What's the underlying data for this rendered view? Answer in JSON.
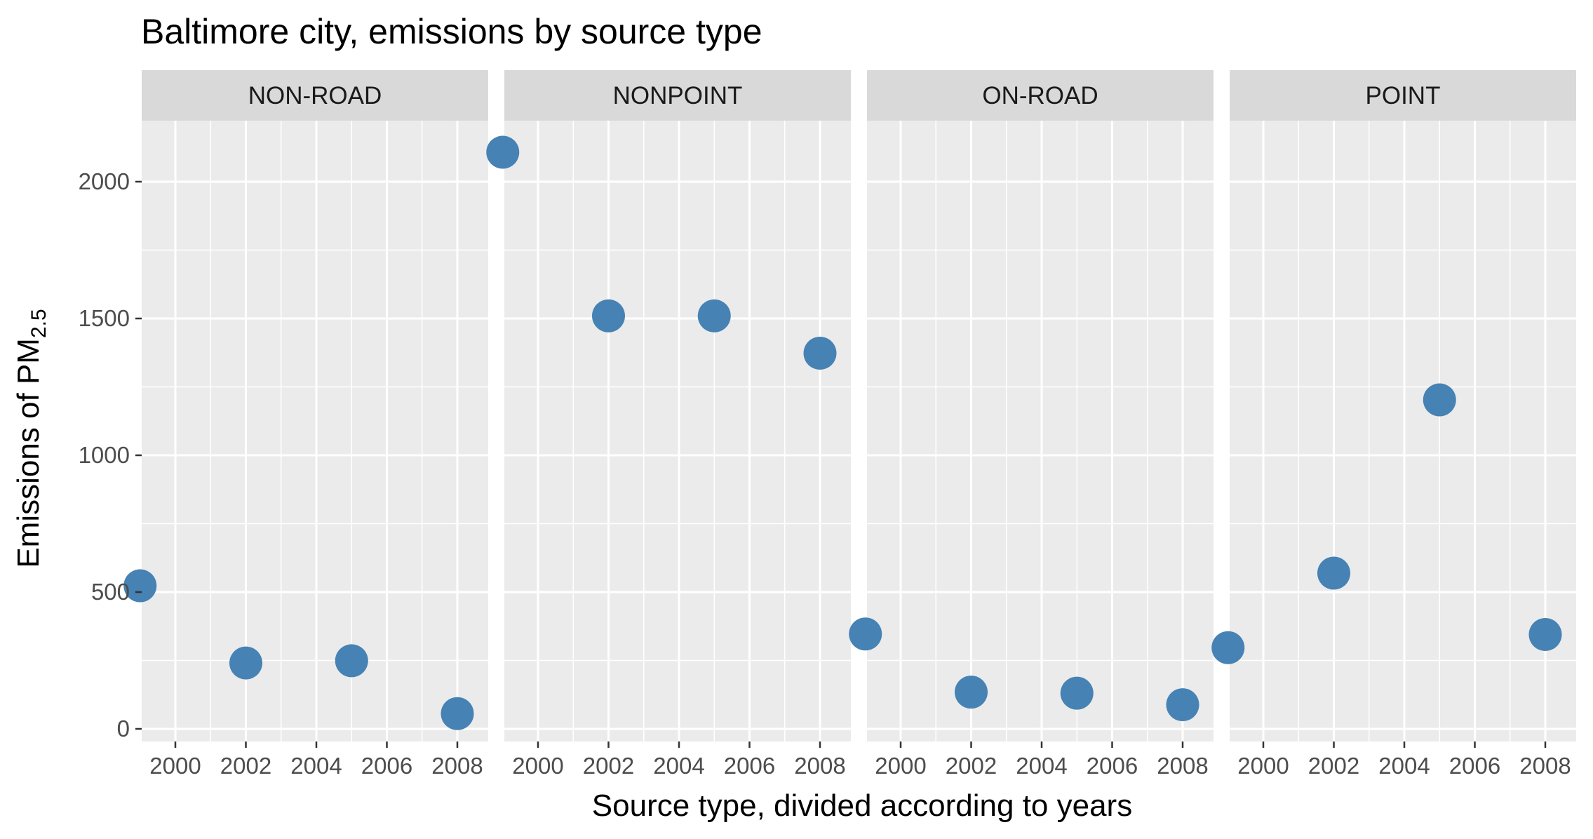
{
  "chart_data": {
    "type": "scatter",
    "title": "Baltimore city, emissions by source type",
    "xlabel": "Source type, divided according to years",
    "ylabel": "Emissions of PM",
    "ylabel_subscript": "2.5",
    "xlim": [
      1999.5,
      2008.5
    ],
    "ylim": [
      0,
      2100
    ],
    "x_ticks": [
      2000,
      2002,
      2004,
      2006,
      2008
    ],
    "x_tick_labels": [
      "2000",
      "2002",
      "2004",
      "2006",
      "2008"
    ],
    "y_ticks": [
      0,
      500,
      1000,
      1500,
      2000
    ],
    "y_tick_labels": [
      "0",
      "500",
      "1000",
      "1500",
      "2000"
    ],
    "grid": true,
    "point_color": "#4682B4",
    "panel_color": "#EBEBEB",
    "strip_color": "#D9D9D9",
    "facets": [
      {
        "name": "NON-ROAD",
        "x": [
          1999,
          2002,
          2005,
          2008
        ],
        "y": [
          522.94,
          240.85,
          248.93,
          55.82
        ]
      },
      {
        "name": "NONPOINT",
        "x": [
          1999,
          2002,
          2005,
          2008
        ],
        "y": [
          2107.63,
          1509.5,
          1509.5,
          1373.21
        ]
      },
      {
        "name": "ON-ROAD",
        "x": [
          1999,
          2002,
          2005,
          2008
        ],
        "y": [
          346.82,
          134.31,
          130.43,
          88.28
        ]
      },
      {
        "name": "POINT",
        "x": [
          1999,
          2002,
          2005,
          2008
        ],
        "y": [
          296.8,
          569.26,
          1202.49,
          344.98
        ]
      }
    ]
  }
}
